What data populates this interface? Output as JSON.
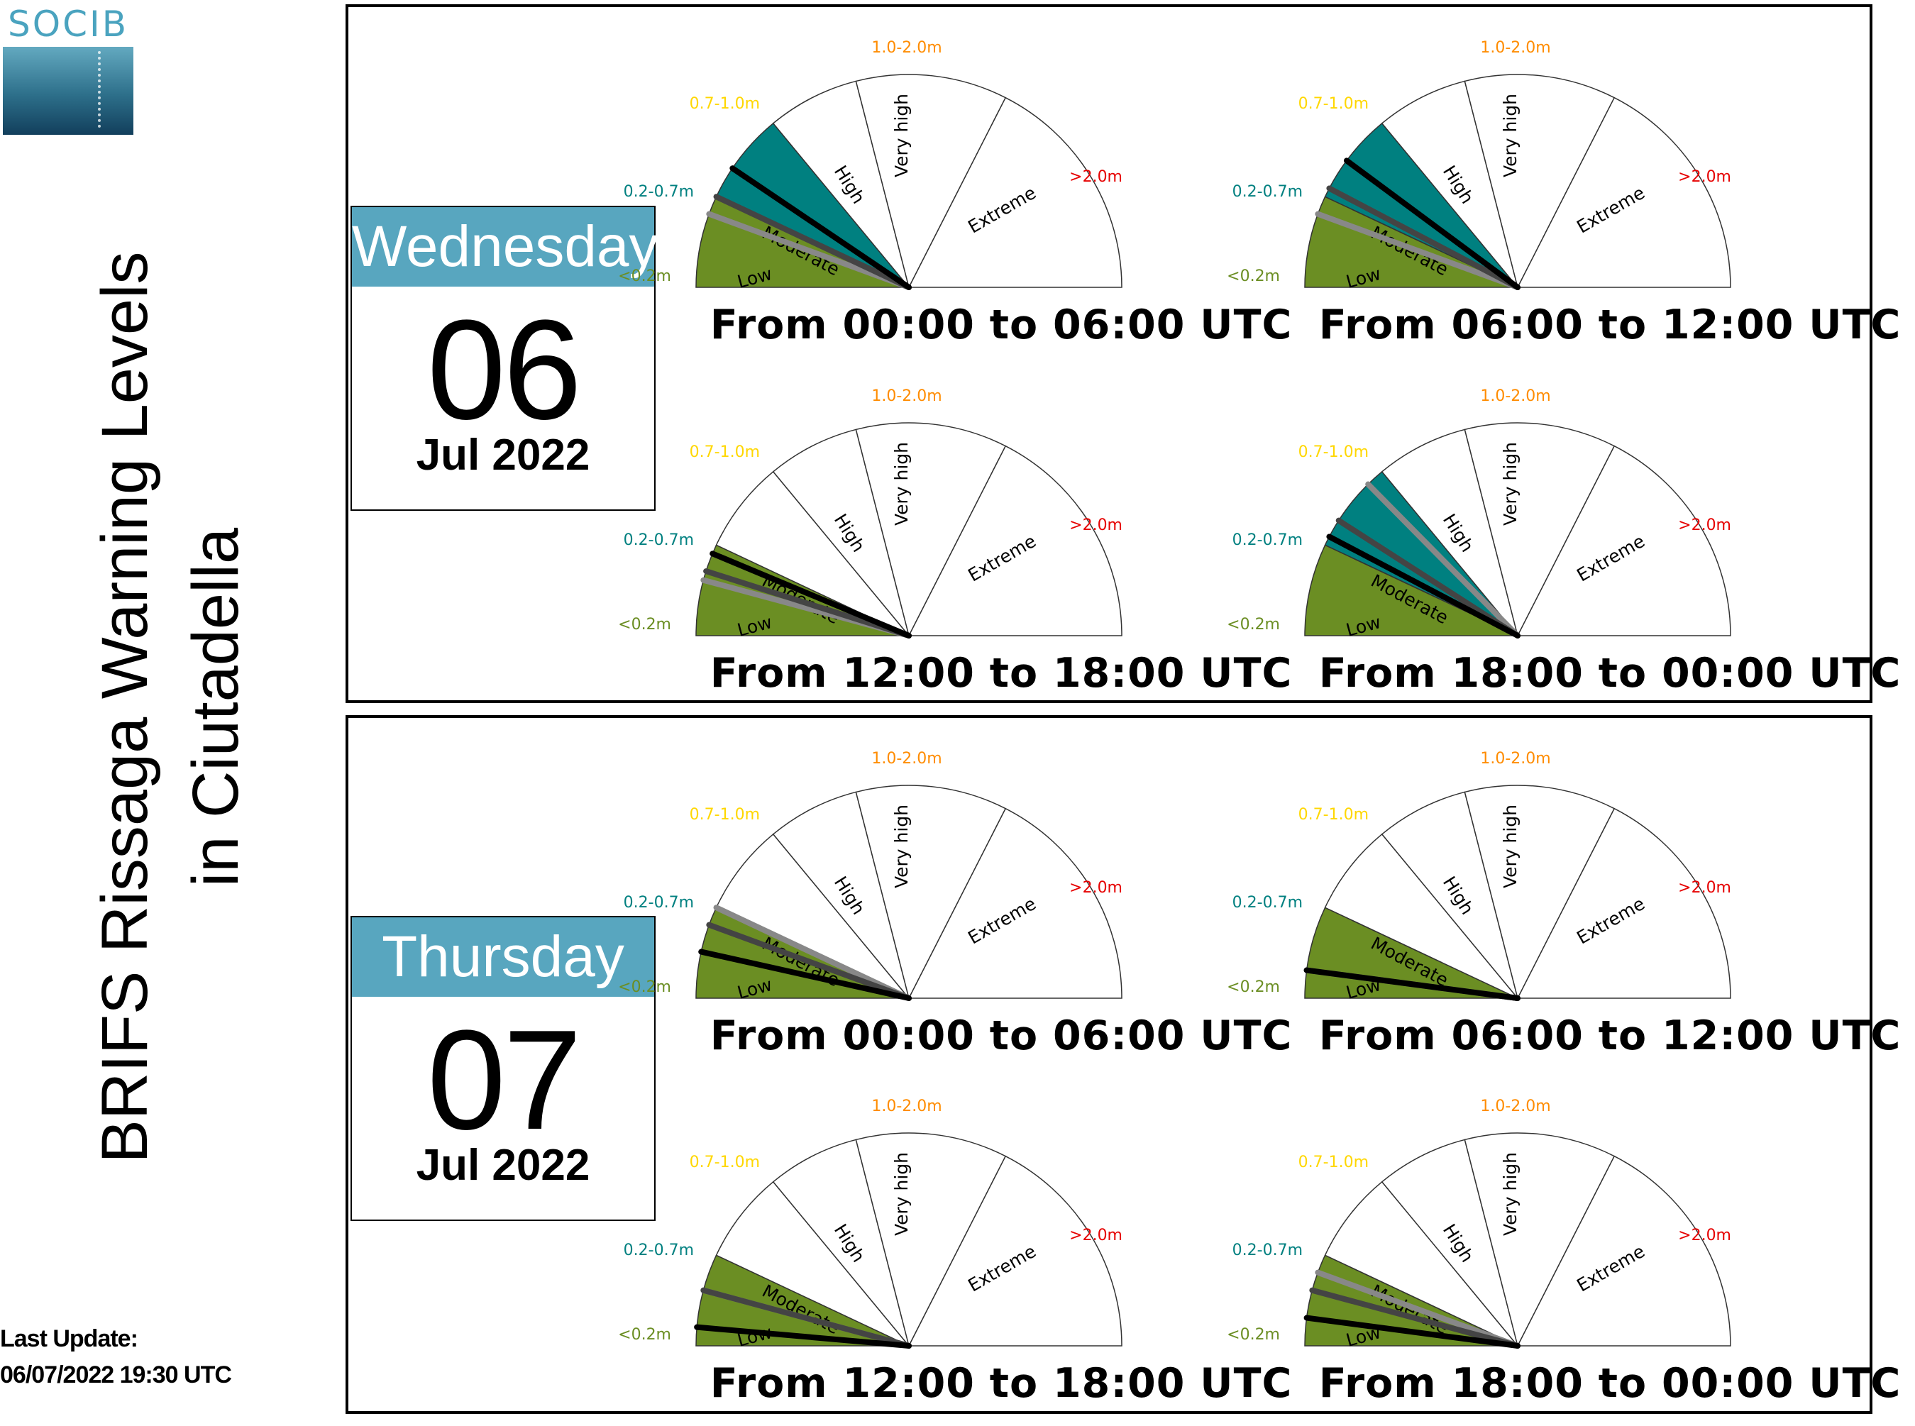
{
  "logo": {
    "text": "SOCIB"
  },
  "title": {
    "line1": "BRIFS Rissaga Warning Levels",
    "line2": "in Ciutadella"
  },
  "last_update": {
    "label": "Last Update:",
    "value": "06/07/2022 19:30 UTC"
  },
  "gauge_scale": {
    "sectors": [
      {
        "name": "Low",
        "range": "<0.2m"
      },
      {
        "name": "Moderate",
        "range": "0.2-0.7m"
      },
      {
        "name": "High",
        "range": "0.7-1.0m"
      },
      {
        "name": "Very high",
        "range": "1.0-2.0m"
      },
      {
        "name": "Extreme",
        "range": ">2.0m"
      }
    ],
    "colors": {
      "low": "#6b8e23",
      "moderate": "#008080",
      "high": "#ffd700",
      "very_high": "#ff8c00",
      "extreme": "#e60000",
      "empty": "#ffffff",
      "needle_black": "#000000",
      "needle_dark": "#444444",
      "needle_gray": "#888888"
    }
  },
  "days": [
    {
      "weekday": "Wednesday",
      "day": "06",
      "month_year": "Jul 2022",
      "periods": [
        {
          "label": "From 00:00 to 06:00 UTC",
          "level": "Moderate",
          "needles": [
            1.35,
            1.0,
            0.8
          ]
        },
        {
          "label": "From 06:00 to 12:00 UTC",
          "level": "Moderate",
          "needles": [
            1.45,
            1.1,
            0.8
          ]
        },
        {
          "label": "From 12:00 to 18:00 UTC",
          "level": "Low",
          "needles": [
            0.9,
            0.7,
            0.6
          ]
        },
        {
          "label": "From 18:00 to 00:00 UTC",
          "level": "Moderate",
          "needles": [
            1.1,
            1.3,
            1.8
          ]
        }
      ]
    },
    {
      "weekday": "Thursday",
      "day": "07",
      "month_year": "Jul 2022",
      "periods": [
        {
          "label": "From 00:00 to 06:00 UTC",
          "level": "Low",
          "needles": [
            0.5,
            0.8,
            1.0
          ]
        },
        {
          "label": "From 06:00 to 12:00 UTC",
          "level": "Low",
          "needles": [
            0.3,
            0.3,
            0.3
          ]
        },
        {
          "label": "From 12:00 to 18:00 UTC",
          "level": "Low",
          "needles": [
            0.2,
            0.6,
            0.6
          ]
        },
        {
          "label": "From 18:00 to 00:00 UTC",
          "level": "Low",
          "needles": [
            0.3,
            0.6,
            0.8
          ]
        }
      ]
    }
  ]
}
